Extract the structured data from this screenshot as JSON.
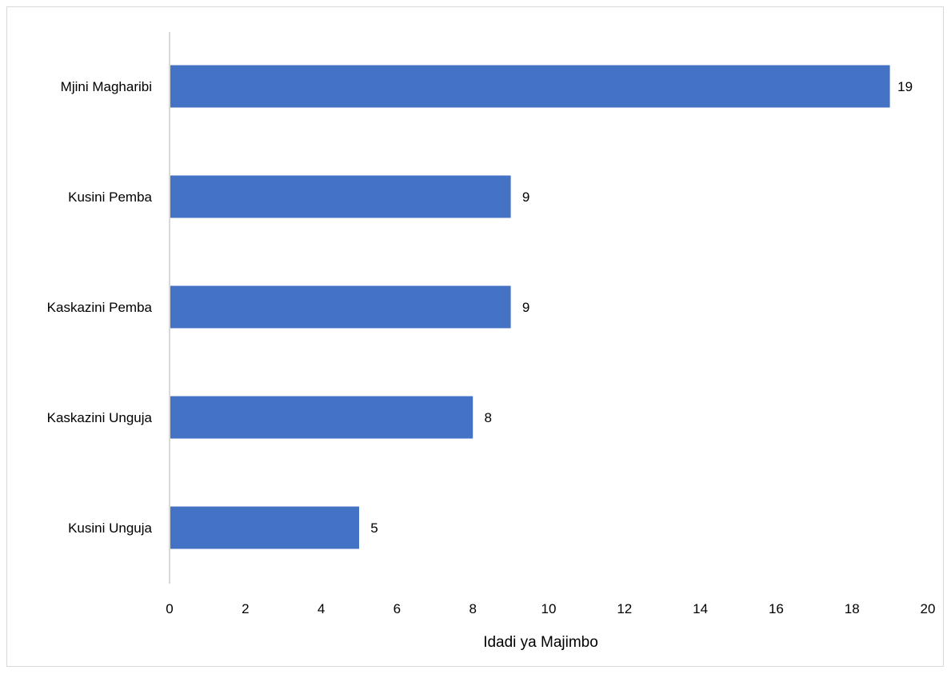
{
  "chart_data": {
    "type": "bar",
    "orientation": "horizontal",
    "categories": [
      "Mjini Magharibi",
      "Kusini Pemba",
      "Kaskazini Pemba",
      "Kaskazini Unguja",
      "Kusini Unguja"
    ],
    "values": [
      19,
      9,
      9,
      8,
      5
    ],
    "data_labels": [
      "19",
      "9",
      "9",
      "8",
      "5"
    ],
    "xlabel": "Idadi ya Majimbo",
    "ylabel": "",
    "title": "",
    "xlim": [
      0,
      20
    ],
    "x_ticks": [
      0,
      2,
      4,
      6,
      8,
      10,
      12,
      14,
      16,
      18,
      20
    ],
    "x_tick_labels": [
      "0",
      "2",
      "4",
      "6",
      "8",
      "10",
      "12",
      "14",
      "16",
      "18",
      "20"
    ],
    "grid": false,
    "legend": "none",
    "bar_color": "#4472C4",
    "axis_line_color": "#d9d9d9"
  }
}
